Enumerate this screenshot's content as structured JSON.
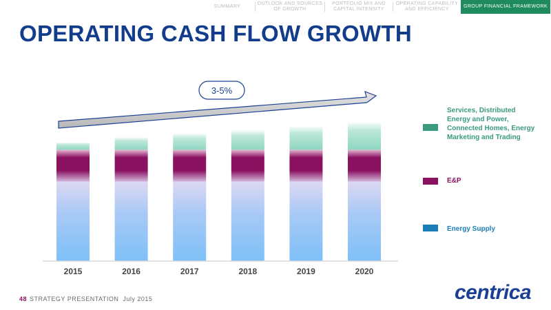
{
  "nav": {
    "tabs": [
      {
        "label": "SUMMARY",
        "active": false
      },
      {
        "label": "OUTLOOK AND SOURCES OF GROWTH",
        "active": false
      },
      {
        "label": "PORTFOLIO MIX AND CAPITAL INTENSITY",
        "active": false
      },
      {
        "label": "OPERATING CAPABILITY AND EFFICIENCY",
        "active": false
      },
      {
        "label": "GROUP FINANCIAL FRAMEWORK",
        "active": true
      }
    ]
  },
  "page_title": "OPERATING CASH FLOW GROWTH",
  "chart_data": {
    "type": "bar",
    "stacked": true,
    "categories": [
      "2015",
      "2016",
      "2017",
      "2018",
      "2019",
      "2020"
    ],
    "series": [
      {
        "name": "Energy Supply",
        "color": "#1a7db8",
        "values": [
          150,
          150,
          150,
          150,
          150,
          150
        ]
      },
      {
        "name": "E&P",
        "color": "#8a1060",
        "values": [
          60,
          60,
          60,
          60,
          60,
          60
        ]
      },
      {
        "name": "Services, Distributed Energy and Power, Connected Homes, Energy Marketing and Trading",
        "color": "#3a9a80",
        "values": [
          14,
          24,
          31,
          38,
          45,
          53
        ]
      }
    ],
    "annotation": "3-5%",
    "title": "",
    "xlabel": "",
    "ylabel": ""
  },
  "legend": [
    {
      "label": "Services, Distributed Energy and Power, Connected Homes, Energy Marketing and Trading",
      "color": "#3a9a80"
    },
    {
      "label": "E&P",
      "color": "#8a1060"
    },
    {
      "label": "Energy Supply",
      "color": "#1a7db8"
    }
  ],
  "footer": {
    "page_number": "48",
    "text": "STRATEGY PRESENTATION",
    "date": "July 2015"
  },
  "logo_text": "centrica"
}
